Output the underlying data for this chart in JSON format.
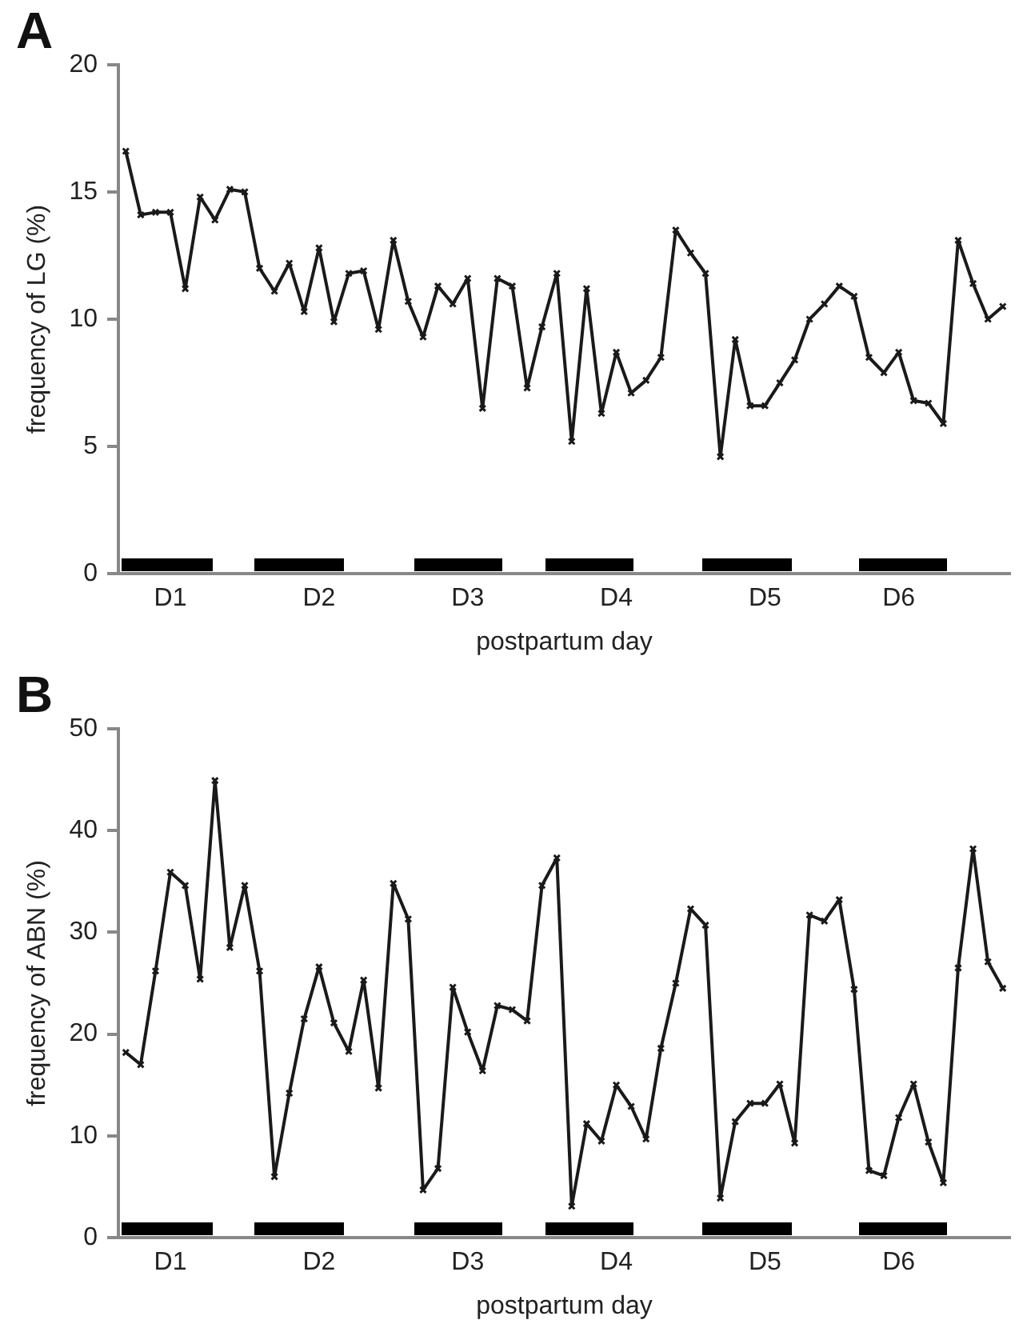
{
  "chart_data": [
    {
      "type": "line",
      "title": "A",
      "xlabel": "postpartum day",
      "ylabel": "frequency of LG (%)",
      "categories": [
        null,
        null,
        null,
        "D1",
        null,
        null,
        null,
        null,
        null,
        null,
        null,
        null,
        null,
        "D2",
        null,
        null,
        null,
        null,
        null,
        null,
        null,
        null,
        null,
        "D3",
        null,
        null,
        null,
        null,
        null,
        null,
        null,
        null,
        null,
        "D4",
        null,
        null,
        null,
        null,
        null,
        null,
        null,
        null,
        null,
        "D5",
        null,
        null,
        null,
        null,
        null,
        null,
        null,
        null,
        "D6",
        null,
        null,
        null,
        null,
        null,
        null,
        null
      ],
      "series": [
        {
          "color": "#1a1a1a",
          "values": [
            16.6,
            14.1,
            14.2,
            14.2,
            11.2,
            14.8,
            13.9,
            15.1,
            15.0,
            12.0,
            11.1,
            12.2,
            10.3,
            12.8,
            9.9,
            11.8,
            11.9,
            9.6,
            13.1,
            10.7,
            9.3,
            11.3,
            10.6,
            11.6,
            6.5,
            11.6,
            11.3,
            7.3,
            9.7,
            11.8,
            5.2,
            11.2,
            6.3,
            8.7,
            7.1,
            7.6,
            8.5,
            13.5,
            12.6,
            11.8,
            4.6,
            9.2,
            6.6,
            6.6,
            7.5,
            8.4,
            10.0,
            10.6,
            11.3,
            10.9,
            8.5,
            7.9,
            8.7,
            6.8,
            6.7,
            5.9,
            13.1,
            11.4,
            10.0,
            10.5
          ]
        }
      ],
      "ylim": [
        0,
        20
      ],
      "yticks": [
        0,
        5,
        10,
        15,
        20
      ],
      "grid": false,
      "legend": false,
      "marker": "cross",
      "line_style": "solid"
    },
    {
      "type": "line",
      "title": "B",
      "xlabel": "postpartum day",
      "ylabel": "frequency of ABN (%)",
      "categories": [
        null,
        null,
        null,
        "D1",
        null,
        null,
        null,
        null,
        null,
        null,
        null,
        null,
        null,
        "D2",
        null,
        null,
        null,
        null,
        null,
        null,
        null,
        null,
        null,
        "D3",
        null,
        null,
        null,
        null,
        null,
        null,
        null,
        null,
        null,
        "D4",
        null,
        null,
        null,
        null,
        null,
        null,
        null,
        null,
        null,
        "D5",
        null,
        null,
        null,
        null,
        null,
        null,
        null,
        null,
        "D6",
        null,
        null,
        null,
        null,
        null,
        null,
        null
      ],
      "series": [
        {
          "color": "#1a1a1a",
          "values": [
            18.2,
            17.0,
            26.2,
            35.9,
            34.6,
            25.4,
            44.9,
            28.5,
            34.6,
            26.2,
            6.0,
            14.2,
            21.5,
            26.6,
            21.1,
            18.3,
            25.3,
            14.7,
            34.8,
            31.3,
            4.7,
            6.8,
            24.6,
            20.2,
            16.4,
            22.8,
            22.4,
            21.3,
            34.6,
            37.3,
            3.1,
            11.2,
            9.5,
            15.0,
            12.9,
            9.7,
            18.6,
            25.0,
            32.3,
            30.7,
            3.9,
            11.4,
            13.2,
            13.2,
            15.1,
            9.3,
            31.7,
            31.1,
            33.2,
            24.4,
            6.6,
            6.1,
            11.8,
            15.1,
            9.4,
            5.4,
            26.5,
            38.2,
            27.1,
            24.5
          ]
        }
      ],
      "ylim": [
        0,
        50
      ],
      "yticks": [
        0,
        10,
        20,
        30,
        40,
        50
      ],
      "grid": false,
      "legend": false,
      "marker": "cross",
      "line_style": "solid"
    }
  ]
}
